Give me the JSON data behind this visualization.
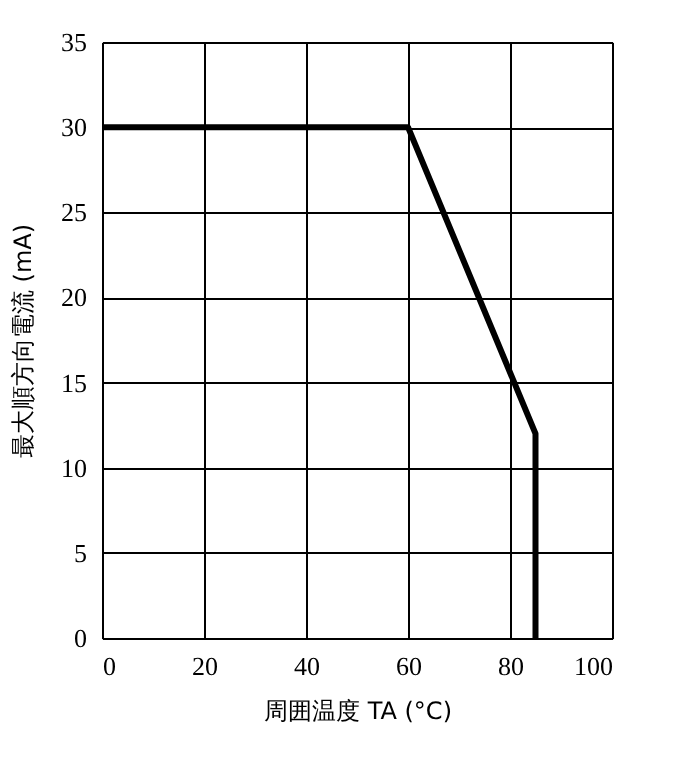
{
  "chart_data": {
    "type": "line",
    "xlabel": "周囲温度 TA (°C)",
    "ylabel": "最大順方向電流 (mA)",
    "x": [
      0,
      60,
      85,
      85
    ],
    "series": [
      {
        "color": "#000000",
        "values": [
          30,
          30,
          12,
          0
        ]
      }
    ],
    "xlim": [
      0,
      100
    ],
    "xticks": [
      0,
      20,
      40,
      60,
      80,
      100
    ],
    "ylim": [
      0,
      35
    ],
    "yticks": [
      0,
      5,
      10,
      15,
      20,
      25,
      30,
      35
    ],
    "grid": true,
    "marker": "none",
    "line_style": "solid"
  }
}
